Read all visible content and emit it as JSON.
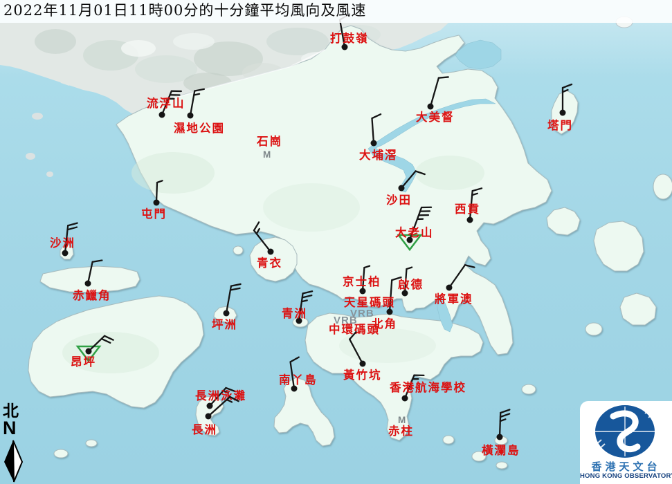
{
  "title": "2022年11月01日11時00分的十分鐘平均風向及風速",
  "north": {
    "chinese": "北",
    "letter": "N"
  },
  "logo": {
    "chinese": "香港天文台",
    "english": "HONG KONG OBSERVATORY"
  },
  "markers": {
    "variable_wind": "VRB",
    "missing_data": "M"
  },
  "colors": {
    "sea": "#a6d9e8",
    "sea_light_top": "#cdeaf2",
    "land": "#edf9f1",
    "urban_gray": "#e2e8e5",
    "label_red": "#dc1212",
    "marker_gray": "#87939a",
    "barb_black": "#151515",
    "triangle_green": "#2fa044",
    "logo_blue": "#17579b",
    "logo_text_blue": "#2e72b2",
    "logo_text_navy": "#14407e"
  },
  "stations": [
    {
      "name": "打鼓嶺",
      "dot": [
        498,
        68
      ],
      "label": [
        477,
        61
      ],
      "barb": {
        "rot": -10,
        "len": 40,
        "full": 1,
        "half": 0
      }
    },
    {
      "name": "流浮山",
      "dot": [
        234,
        166
      ],
      "label": [
        212,
        155
      ],
      "barb": {
        "rot": 22,
        "len": 37,
        "full": 2,
        "half": 1
      }
    },
    {
      "name": "濕地公園",
      "dot": [
        275,
        167
      ],
      "label": [
        251,
        191
      ],
      "barb": {
        "rot": 10,
        "len": 36,
        "full": 1,
        "half": 1
      }
    },
    {
      "name": "石崗",
      "label": [
        371,
        210
      ],
      "missing": [
        380,
        228
      ]
    },
    {
      "name": "大埔滘",
      "dot": [
        540,
        207
      ],
      "label": [
        519,
        230
      ],
      "barb": {
        "rot": -4,
        "len": 36,
        "full": 1,
        "half": 0
      }
    },
    {
      "name": "大美督",
      "dot": [
        622,
        154
      ],
      "label": [
        601,
        175
      ],
      "barb": {
        "rot": 16,
        "len": 43,
        "full": 1,
        "half": 0
      }
    },
    {
      "name": "塔門",
      "dot": [
        813,
        163
      ],
      "label": [
        791,
        187
      ],
      "barb": {
        "rot": 0,
        "len": 36,
        "full": 1,
        "half": 1
      }
    },
    {
      "name": "沙田",
      "dot": [
        580,
        272
      ],
      "label": [
        558,
        295
      ],
      "barb": {
        "rot": 40,
        "len": 32,
        "full": 1,
        "half": 0
      }
    },
    {
      "name": "西貢",
      "dot": [
        679,
        318
      ],
      "label": [
        657,
        308
      ],
      "barb": {
        "rot": 5,
        "len": 42,
        "full": 1,
        "half": 1
      }
    },
    {
      "name": "大老山",
      "dot": [
        592,
        347
      ],
      "label": [
        571,
        342
      ],
      "triangle": true,
      "barb": {
        "rot": 20,
        "len": 50,
        "full": 3,
        "half": 1
      }
    },
    {
      "name": "屯門",
      "dot": [
        226,
        293
      ],
      "label": [
        204,
        315
      ],
      "barb": {
        "rot": 2,
        "len": 29,
        "full": 0,
        "half": 1
      }
    },
    {
      "name": "沙洲",
      "dot": [
        94,
        366
      ],
      "label": [
        72,
        357
      ],
      "barb": {
        "rot": 6,
        "len": 40,
        "full": 2,
        "half": 0
      }
    },
    {
      "name": "赤鱲角",
      "dot": [
        127,
        410
      ],
      "label": [
        105,
        433
      ],
      "barb": {
        "rot": 12,
        "len": 32,
        "full": 1,
        "half": 0
      }
    },
    {
      "name": "青衣",
      "dot": [
        391,
        364
      ],
      "label": [
        371,
        386
      ],
      "barb": {
        "rot": -38,
        "len": 39,
        "full": 1,
        "half": 1
      }
    },
    {
      "name": "坪洲",
      "dot": [
        327,
        453
      ],
      "label": [
        306,
        475
      ],
      "barb": {
        "rot": 10,
        "len": 40,
        "full": 2,
        "half": 0
      }
    },
    {
      "name": "青洲",
      "dot": [
        432,
        464
      ],
      "label": [
        407,
        459
      ],
      "barb": {
        "rot": 8,
        "len": 40,
        "full": 2,
        "half": 1
      }
    },
    {
      "name": "京士柏",
      "dot": [
        524,
        421
      ],
      "label": [
        495,
        413
      ],
      "barb": {
        "rot": 4,
        "len": 34,
        "full": 0,
        "half": 1
      }
    },
    {
      "name": "啟德",
      "dot": [
        585,
        424
      ],
      "label": [
        575,
        417
      ],
      "barb": {
        "rot": 4,
        "len": 35,
        "full": 0,
        "half": 1
      }
    },
    {
      "name": "北角",
      "dot": [
        563,
        451
      ],
      "label": [
        537,
        474
      ],
      "barb": {
        "rot": 4,
        "len": 46,
        "full": 1,
        "half": 0
      }
    },
    {
      "name": "將軍澳",
      "dot": [
        649,
        416
      ],
      "label": [
        628,
        438
      ],
      "barb": {
        "rot": 35,
        "len": 40,
        "full": 1,
        "half": 0
      }
    },
    {
      "name": "天星碼頭",
      "label": [
        497,
        443
      ],
      "vrb": [
        506,
        458
      ]
    },
    {
      "name": "中環碼頭",
      "label": [
        475,
        482
      ],
      "vrb": [
        482,
        468
      ]
    },
    {
      "name": "黃竹坑",
      "dot": [
        524,
        526
      ],
      "label": [
        496,
        548
      ],
      "barb": {
        "rot": -28,
        "len": 40,
        "full": 1,
        "half": 0
      }
    },
    {
      "name": "南丫島",
      "dot": [
        425,
        562
      ],
      "label": [
        403,
        555
      ],
      "barb": {
        "rot": -8,
        "len": 39,
        "full": 1,
        "half": 0
      }
    },
    {
      "name": "香港航海學校",
      "dot": [
        585,
        576
      ],
      "label": [
        563,
        566
      ],
      "barb": {
        "rot": 22,
        "len": 36,
        "full": 1,
        "half": 1
      }
    },
    {
      "name": "赤柱",
      "label": [
        561,
        629
      ],
      "missing": [
        575,
        612
      ]
    },
    {
      "name": "長洲泳灘",
      "dot": [
        303,
        587
      ],
      "label": [
        282,
        578
      ],
      "barb": {
        "rot": 42,
        "len": 35,
        "full": 1,
        "half": 1
      }
    },
    {
      "name": "長洲",
      "dot": [
        301,
        602
      ],
      "label": [
        277,
        627
      ],
      "barb": {
        "rot": 48,
        "len": 42,
        "full": 1,
        "half": 1
      }
    },
    {
      "name": "橫瀾島",
      "dot": [
        722,
        632
      ],
      "label": [
        696,
        657
      ],
      "barb": {
        "rot": 2,
        "len": 35,
        "full": 2,
        "half": 1
      }
    },
    {
      "name": "昂坪",
      "dot": [
        128,
        508
      ],
      "label": [
        102,
        529
      ],
      "triangle": true,
      "barb": {
        "rot": 46,
        "len": 32,
        "full": 2,
        "half": 0
      }
    }
  ]
}
